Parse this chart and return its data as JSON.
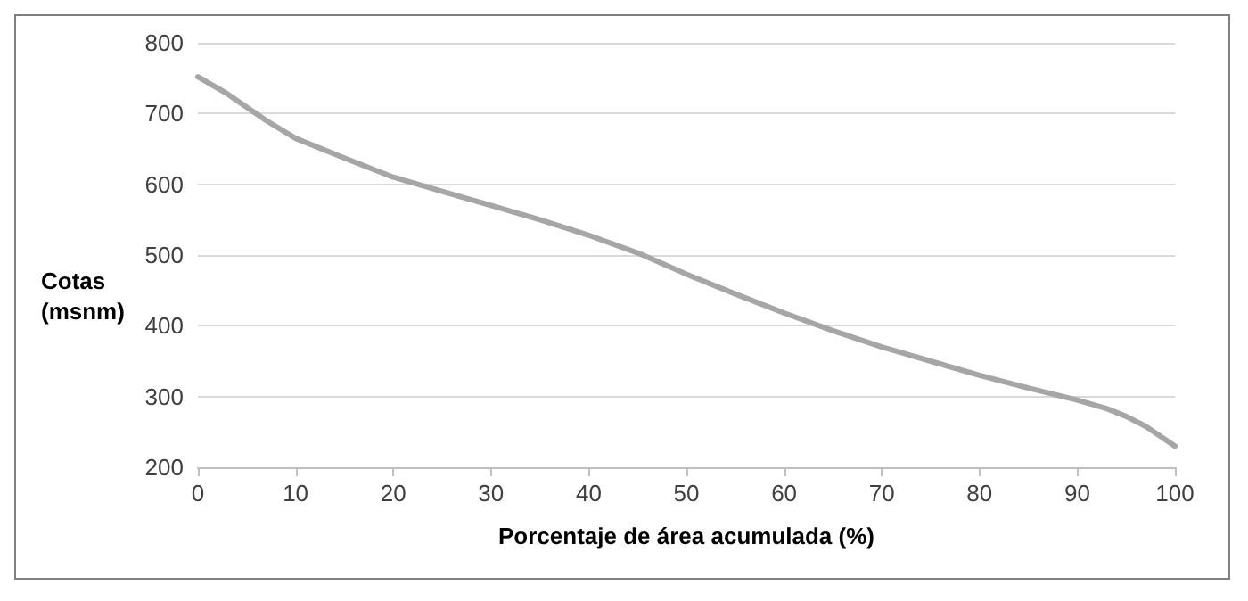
{
  "chart_data": {
    "type": "line",
    "xlabel": "Porcentaje de área acumulada (%)",
    "ylabel": "Cotas (msnm)",
    "x": [
      0,
      3,
      7,
      10,
      15,
      20,
      25,
      30,
      35,
      40,
      45,
      50,
      55,
      60,
      65,
      70,
      75,
      80,
      85,
      90,
      93,
      95,
      97,
      100
    ],
    "series": [
      {
        "color": "#a6a6a6",
        "values": [
          752,
          728,
          690,
          665,
          637,
          610,
          590,
          570,
          550,
          528,
          503,
          473,
          445,
          418,
          393,
          370,
          350,
          330,
          312,
          295,
          283,
          272,
          258,
          230
        ]
      }
    ],
    "xlim": [
      0,
      100
    ],
    "xticks": [
      0,
      10,
      20,
      30,
      40,
      50,
      60,
      70,
      80,
      90,
      100
    ],
    "ylim": [
      200,
      800
    ],
    "yticks": [
      200,
      300,
      400,
      500,
      600,
      700,
      800
    ],
    "grid": "y",
    "marker": "none",
    "line_style": "solid"
  }
}
